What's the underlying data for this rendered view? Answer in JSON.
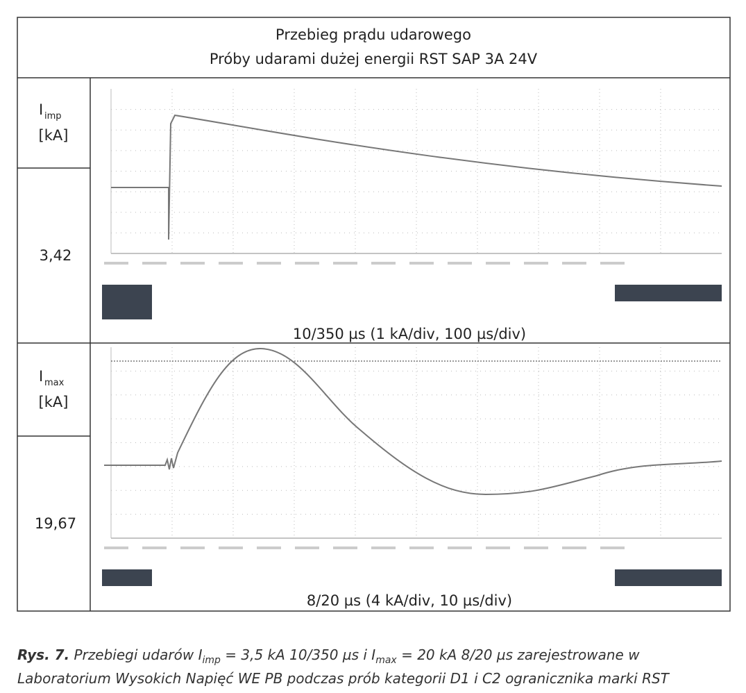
{
  "header": {
    "line1": "Przebieg prądu udarowego",
    "line2": "Próby udarami dużej energii RST SAP 3A 24V"
  },
  "rows": [
    {
      "symbol": "I",
      "subscript": "imp",
      "unit": "[kA]",
      "value": "3,42",
      "caption": "10/350 µs  (1 kA/div, 100 µs/div)"
    },
    {
      "symbol": "I",
      "subscript": "max",
      "unit": "[kA]",
      "value": "19,67",
      "caption": "8/20 µs (4 kA/div, 10 µs/div)"
    }
  ],
  "figure_caption": {
    "label": "Rys. 7.",
    "line1": [
      "Przebiegi udarów ",
      "I",
      "imp",
      " = 3,5 kA 10/350 µs i ",
      "I",
      "max",
      " = 20 kA 8/20 µs zarejestrowane w"
    ],
    "line2": "Laboratorium Wysokich Napięć WE PB podczas prób kategorii D1 i C2 ogranicznika marki RST"
  }
}
